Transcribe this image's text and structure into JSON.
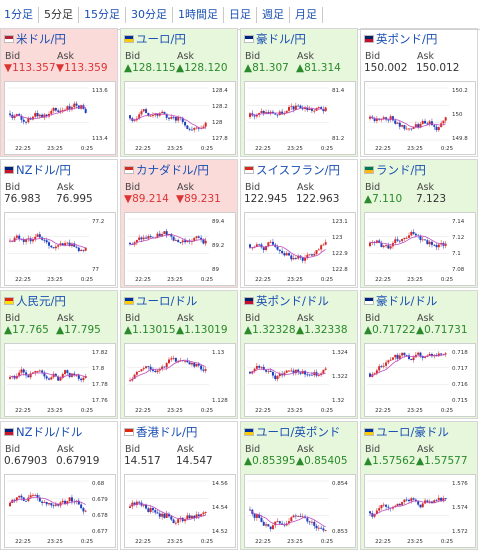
{
  "tabs": [
    {
      "label": "1分足",
      "active": false
    },
    {
      "label": "5分足",
      "active": true
    },
    {
      "label": "15分足",
      "active": false
    },
    {
      "label": "30分足",
      "active": false
    },
    {
      "label": "1時間足",
      "active": false
    },
    {
      "label": "日足",
      "active": false
    },
    {
      "label": "週足",
      "active": false
    },
    {
      "label": "月足",
      "active": false
    }
  ],
  "labels": {
    "bid": "Bid",
    "ask": "Ask"
  },
  "x_ticks": [
    "22:25",
    "23:25",
    "0:25"
  ],
  "colors": {
    "up_bg": "#e6f7dc",
    "down_bg": "#fbdada",
    "up_text": "#2b8a2b",
    "down_text": "#d33333",
    "candle_up": "#d42a2a",
    "candle_down": "#1f3fbf",
    "ma": "#c04fc0"
  },
  "pairs": [
    {
      "name": "米ドル/円",
      "flag": [
        "#b22234",
        "#ffffff"
      ],
      "dir": "down",
      "bid": "▼113.357",
      "ask": "▼113.359",
      "yticks": [
        "113.6",
        "113.4"
      ]
    },
    {
      "name": "ユーロ/円",
      "flag": [
        "#003399",
        "#ffcc00"
      ],
      "dir": "up",
      "bid": "▲128.115",
      "ask": "▲128.120",
      "yticks": [
        "128.4",
        "128.2",
        "128",
        "127.8"
      ]
    },
    {
      "name": "豪ドル/円",
      "flag": [
        "#00247d",
        "#ffffff"
      ],
      "dir": "up",
      "bid": "▲81.307",
      "ask": "▲81.314",
      "yticks": [
        "81.4",
        "81.2"
      ]
    },
    {
      "name": "英ポンド/円",
      "flag": [
        "#012169",
        "#c8102e"
      ],
      "dir": "neutral",
      "bid": "150.002",
      "ask": "150.012",
      "yticks": [
        "150.2",
        "150",
        "149.8"
      ]
    },
    {
      "name": "NZドル/円",
      "flag": [
        "#00247d",
        "#cc142b"
      ],
      "dir": "neutral",
      "bid": "76.983",
      "ask": "76.995",
      "yticks": [
        "77.2",
        "77"
      ]
    },
    {
      "name": "カナダドル/円",
      "flag": [
        "#d52b1e",
        "#ffffff"
      ],
      "dir": "down",
      "bid": "▼89.214",
      "ask": "▼89.231",
      "yticks": [
        "89.4",
        "89.2",
        "89"
      ]
    },
    {
      "name": "スイスフラン/円",
      "flag": [
        "#d52b1e",
        "#ffffff"
      ],
      "dir": "neutral",
      "bid": "122.945",
      "ask": "122.963",
      "yticks": [
        "123.1",
        "123",
        "122.9",
        "122.8"
      ]
    },
    {
      "name": "ランド/円",
      "flag": [
        "#007a4d",
        "#ffb612"
      ],
      "dir": "up",
      "bid": "▲7.110",
      "ask": "7.123",
      "yticks": [
        "7.14",
        "7.12",
        "7.1",
        "7.08"
      ]
    },
    {
      "name": "人民元/円",
      "flag": [
        "#de2910",
        "#ffde00"
      ],
      "dir": "up",
      "bid": "▲17.765",
      "ask": "▲17.795",
      "yticks": [
        "17.82",
        "17.8",
        "17.78",
        "17.76"
      ]
    },
    {
      "name": "ユーロ/ドル",
      "flag": [
        "#003399",
        "#ffcc00"
      ],
      "dir": "up",
      "bid": "▲1.13015",
      "ask": "▲1.13019",
      "yticks": [
        "1.13",
        "1.128"
      ]
    },
    {
      "name": "英ポンド/ドル",
      "flag": [
        "#012169",
        "#c8102e"
      ],
      "dir": "up",
      "bid": "▲1.32328",
      "ask": "▲1.32338",
      "yticks": [
        "1.324",
        "1.322",
        "1.32"
      ]
    },
    {
      "name": "豪ドル/ドル",
      "flag": [
        "#00247d",
        "#ffffff"
      ],
      "dir": "up",
      "bid": "▲0.71722",
      "ask": "▲0.71731",
      "yticks": [
        "0.718",
        "0.717",
        "0.716",
        "0.715"
      ]
    },
    {
      "name": "NZドル/ドル",
      "flag": [
        "#00247d",
        "#cc142b"
      ],
      "dir": "neutral",
      "bid": "0.67903",
      "ask": "0.67919",
      "yticks": [
        "0.68",
        "0.679",
        "0.678",
        "0.677"
      ]
    },
    {
      "name": "香港ドル/円",
      "flag": [
        "#de2910",
        "#ffffff"
      ],
      "dir": "neutral",
      "bid": "14.517",
      "ask": "14.547",
      "yticks": [
        "14.56",
        "14.54",
        "14.52"
      ]
    },
    {
      "name": "ユーロ/英ポンド",
      "flag": [
        "#003399",
        "#ffcc00"
      ],
      "dir": "up",
      "bid": "▲0.85395",
      "ask": "▲0.85405",
      "yticks": [
        "0.854",
        "0.853"
      ]
    },
    {
      "name": "ユーロ/豪ドル",
      "flag": [
        "#003399",
        "#ffcc00"
      ],
      "dir": "up",
      "bid": "▲1.57562",
      "ask": "▲1.57577",
      "yticks": [
        "1.576",
        "1.574",
        "1.572"
      ]
    }
  ]
}
